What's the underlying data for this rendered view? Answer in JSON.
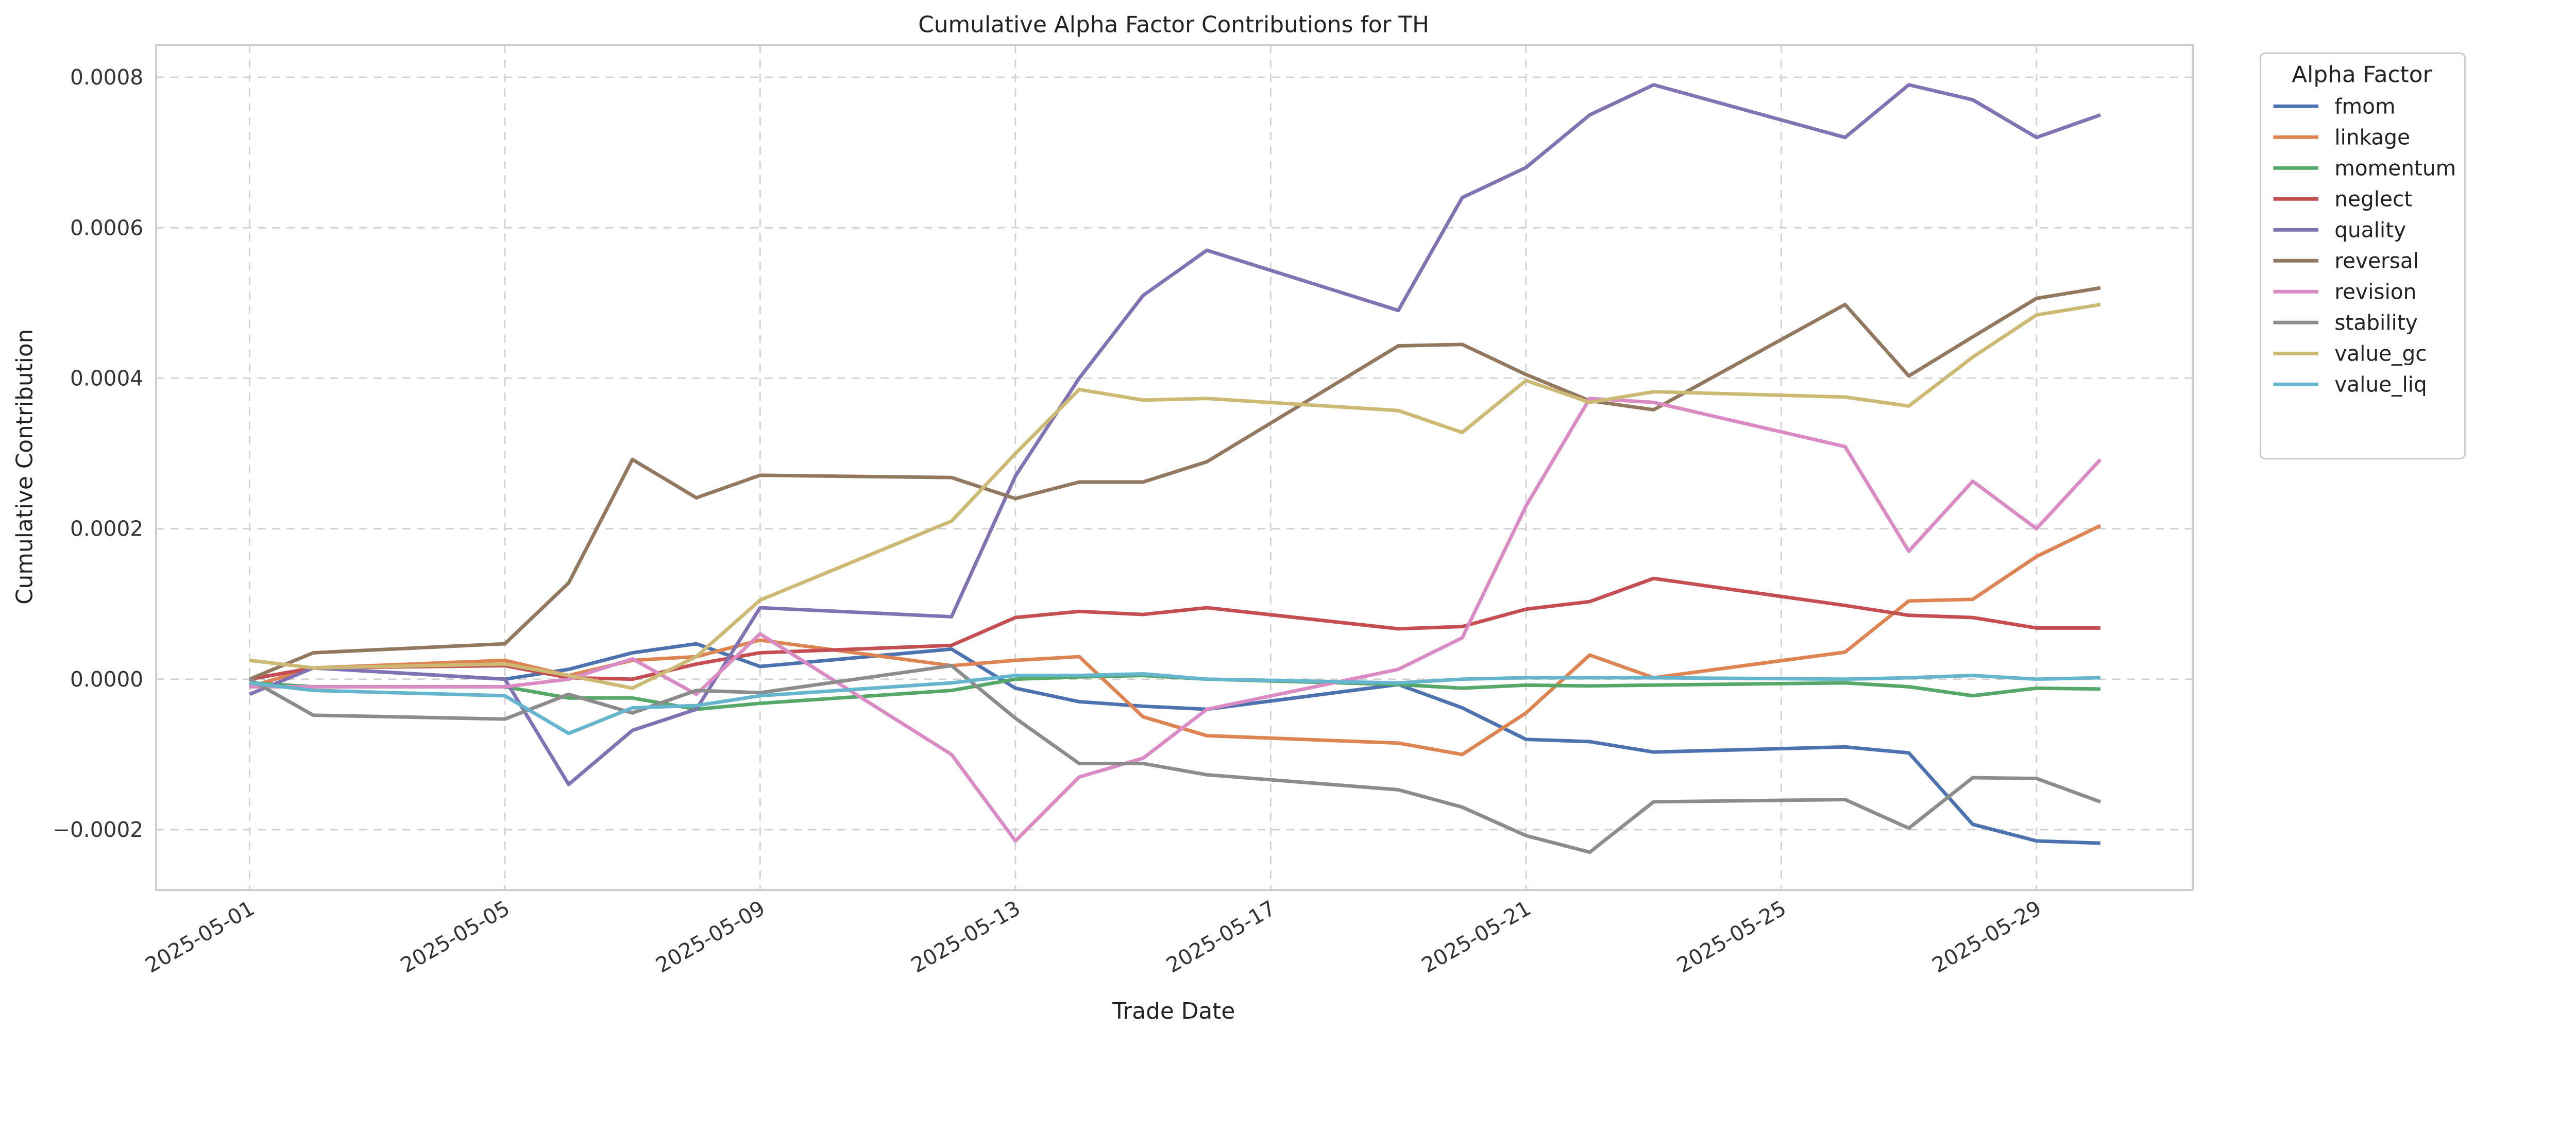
{
  "chart_data": {
    "type": "line",
    "title": "Cumulative Alpha Factor Contributions for TH",
    "xlabel": "Trade Date",
    "ylabel": "Cumulative Contribution",
    "legend_title": "Alpha Factor",
    "legend_placement": "outside-top-right",
    "grid": true,
    "ylim": [
      -0.00028,
      0.00085
    ],
    "x": [
      "2025-05-01",
      "2025-05-02",
      "2025-05-05",
      "2025-05-06",
      "2025-05-07",
      "2025-05-08",
      "2025-05-09",
      "2025-05-12",
      "2025-05-13",
      "2025-05-14",
      "2025-05-15",
      "2025-05-16",
      "2025-05-19",
      "2025-05-20",
      "2025-05-21",
      "2025-05-22",
      "2025-05-23",
      "2025-05-26",
      "2025-05-27",
      "2025-05-28",
      "2025-05-29",
      "2025-05-30"
    ],
    "xticks": [
      "2025-05-01",
      "2025-05-05",
      "2025-05-09",
      "2025-05-13",
      "2025-05-17",
      "2025-05-21",
      "2025-05-25",
      "2025-05-29"
    ],
    "yticks": [
      -0.0002,
      0.0,
      0.0002,
      0.0004,
      0.0006,
      0.0008
    ],
    "ytick_labels": [
      "−0.0002",
      "0.0000",
      "0.0002",
      "0.0004",
      "0.0006",
      "0.0008"
    ],
    "series": [
      {
        "name": "fmom",
        "color": "#4c72b0",
        "values": [
          0.0,
          1.5e-05,
          0.0,
          1.3e-05,
          3.5e-05,
          4.7e-05,
          1.7e-05,
          4e-05,
          -1.2e-05,
          -3e-05,
          -3.6e-05,
          -4e-05,
          -7e-06,
          -3.8e-05,
          -8e-05,
          -8.3e-05,
          -9.7e-05,
          -9e-05,
          -9.8e-05,
          -0.000193,
          -0.000215,
          -0.000218
        ]
      },
      {
        "name": "linkage",
        "color": "#dd8452",
        "values": [
          -1e-05,
          1.5e-05,
          2.5e-05,
          5e-06,
          2.5e-05,
          3e-05,
          5.2e-05,
          1.8e-05,
          2.5e-05,
          3e-05,
          -5e-05,
          -7.5e-05,
          -8.5e-05,
          -0.0001,
          -4.5e-05,
          3.2e-05,
          2e-06,
          3.6e-05,
          0.000104,
          0.000106,
          0.000163,
          0.000204
        ]
      },
      {
        "name": "momentum",
        "color": "#55a868",
        "values": [
          -5e-06,
          -1e-05,
          -1e-05,
          -2.5e-05,
          -2.5e-05,
          -4e-05,
          -3.2e-05,
          -1.5e-05,
          0.0,
          3e-06,
          5e-06,
          0.0,
          -7e-06,
          -1.2e-05,
          -8e-06,
          -9e-06,
          -8e-06,
          -5e-06,
          -1e-05,
          -2.2e-05,
          -1.2e-05,
          -1.3e-05
        ]
      },
      {
        "name": "neglect",
        "color": "#c44e52",
        "values": [
          0.0,
          1.5e-05,
          1.8e-05,
          2e-06,
          0.0,
          2e-05,
          3.5e-05,
          4.5e-05,
          8.2e-05,
          9e-05,
          8.6e-05,
          9.5e-05,
          6.7e-05,
          7e-05,
          9.3e-05,
          0.000103,
          0.000134,
          9.8e-05,
          8.5e-05,
          8.2e-05,
          6.8e-05,
          6.8e-05
        ]
      },
      {
        "name": "quality",
        "color": "#8172b3",
        "values": [
          -2e-05,
          1.5e-05,
          0.0,
          -0.00014,
          -6.8e-05,
          -4e-05,
          9.5e-05,
          8.3e-05,
          0.00027,
          0.0004,
          0.00051,
          0.00057,
          0.00049,
          0.00064,
          0.00068,
          0.00075,
          0.00079,
          0.00072,
          0.00079,
          0.00077,
          0.00072,
          0.00075
        ]
      },
      {
        "name": "reversal",
        "color": "#937860",
        "values": [
          0.0,
          3.5e-05,
          4.7e-05,
          0.000128,
          0.000292,
          0.000241,
          0.000271,
          0.000268,
          0.00024,
          0.000262,
          0.000262,
          0.000289,
          0.000443,
          0.000445,
          0.000405,
          0.00037,
          0.000358,
          0.000498,
          0.000403,
          0.000455,
          0.000506,
          0.00052
        ]
      },
      {
        "name": "revision",
        "color": "#da8bc3",
        "values": [
          -1e-05,
          -1e-05,
          -1e-05,
          0.0,
          2.7e-05,
          -2e-05,
          6e-05,
          -0.0001,
          -0.000215,
          -0.00013,
          -0.000105,
          -4e-05,
          1.3e-05,
          5.5e-05,
          0.00023,
          0.000373,
          0.000368,
          0.000309,
          0.00017,
          0.000263,
          0.0002,
          0.000292
        ]
      },
      {
        "name": "stability",
        "color": "#8c8c8c",
        "values": [
          0.0,
          -4.8e-05,
          -5.3e-05,
          -2e-05,
          -4.5e-05,
          -1.5e-05,
          -1.8e-05,
          1.8e-05,
          -5.2e-05,
          -0.000112,
          -0.000112,
          -0.000127,
          -0.000147,
          -0.00017,
          -0.000208,
          -0.00023,
          -0.000163,
          -0.00016,
          -0.000198,
          -0.000131,
          -0.000132,
          -0.000163
        ]
      },
      {
        "name": "value_gc",
        "color": "#ccb974",
        "values": [
          2.5e-05,
          1.5e-05,
          2e-05,
          5e-06,
          -1.2e-05,
          3e-05,
          0.000105,
          0.00021,
          0.0003,
          0.000385,
          0.000371,
          0.000373,
          0.000357,
          0.000328,
          0.000397,
          0.000368,
          0.000382,
          0.000375,
          0.000363,
          0.000428,
          0.000484,
          0.000498
        ]
      },
      {
        "name": "value_liq",
        "color": "#64b5cd",
        "values": [
          -5e-06,
          -1.5e-05,
          -2.2e-05,
          -7.2e-05,
          -3.8e-05,
          -3.5e-05,
          -2.2e-05,
          -5e-06,
          5e-06,
          5e-06,
          7e-06,
          0.0,
          -5e-06,
          0.0,
          2e-06,
          2e-06,
          2e-06,
          0.0,
          2e-06,
          5e-06,
          0.0,
          2e-06
        ]
      }
    ]
  }
}
